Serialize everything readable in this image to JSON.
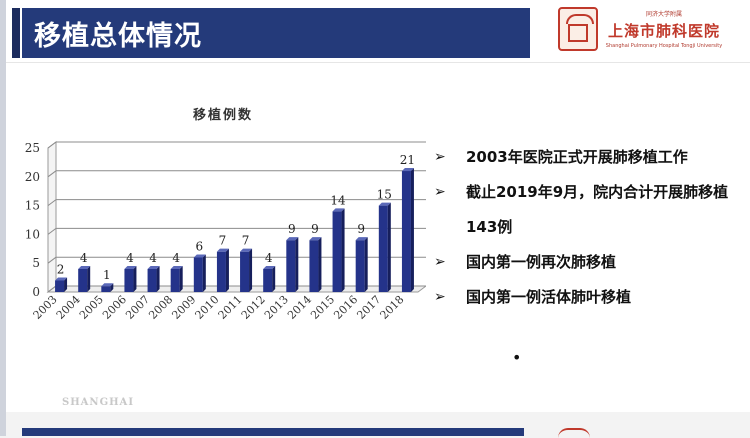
{
  "title": "移植总体情况",
  "logo": {
    "top_text": "同济大学附属",
    "name": "上海市肺科医院",
    "english": "Shanghai Pulmonary Hospital Tongji University"
  },
  "bullets": [
    {
      "icon": "arrow-bullet-icon",
      "text": "2003年医院正式开展肺移植工作"
    },
    {
      "icon": "arrow-bullet-icon",
      "text": "截止2019年9月，院内合计开展肺移植143例"
    },
    {
      "icon": "arrow-bullet-icon",
      "text": "国内第一例再次肺移植"
    },
    {
      "icon": "arrow-bullet-icon",
      "text": "国内第一例活体肺叶移植"
    }
  ],
  "trailing_dot": "•",
  "footer": "SHANGHAI",
  "colors": {
    "title_bar": "#243a7a",
    "bar": "#24338a",
    "accent_red": "#c0392b"
  },
  "chart_data": {
    "type": "bar",
    "title": "移植例数",
    "categories": [
      "2003",
      "2004",
      "2005",
      "2006",
      "2007",
      "2008",
      "2009",
      "2010",
      "2011",
      "2012",
      "2013",
      "2014",
      "2015",
      "2016",
      "2017",
      "2018"
    ],
    "values": [
      2,
      4,
      1,
      4,
      4,
      4,
      6,
      7,
      7,
      4,
      9,
      9,
      14,
      9,
      15,
      21
    ],
    "ylim": [
      0,
      25
    ],
    "yticks": [
      0,
      5,
      10,
      15,
      20,
      25
    ],
    "grid": true,
    "data_labels": true,
    "xlabel": "",
    "ylabel": ""
  }
}
